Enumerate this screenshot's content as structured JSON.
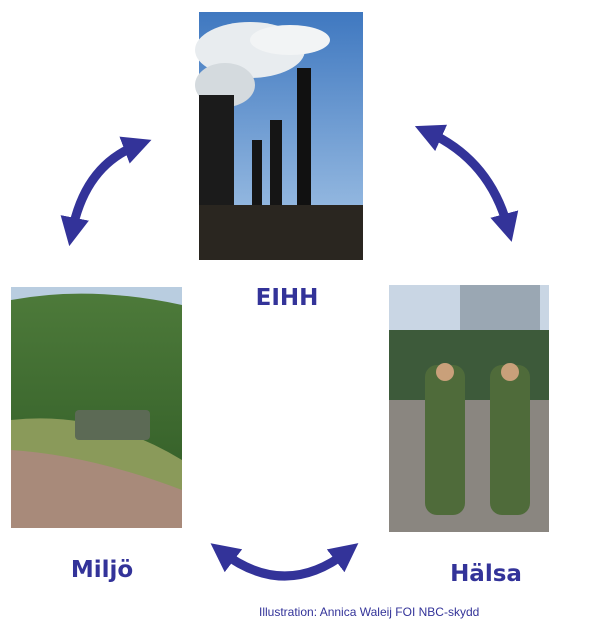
{
  "nodes": [
    {
      "label": "EIHH"
    },
    {
      "label": "Miljö"
    },
    {
      "label": "Hälsa"
    }
  ],
  "caption": "Illustration: Annica Waleij FOI NBC-skydd"
}
